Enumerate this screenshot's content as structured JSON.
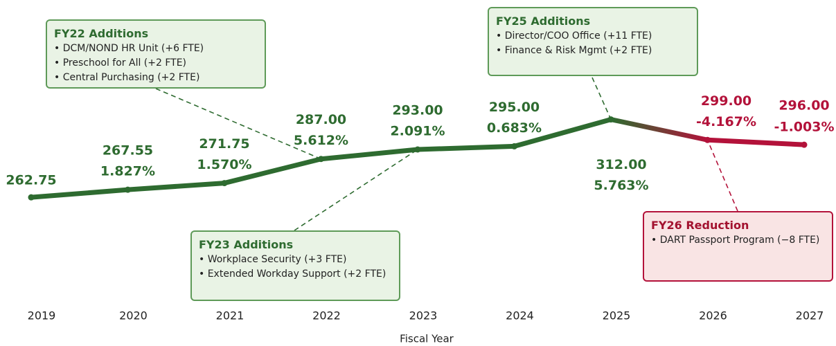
{
  "chart_data": {
    "type": "line",
    "x_label": "Fiscal Year",
    "categories": [
      "2019",
      "2020",
      "2021",
      "2022",
      "2023",
      "2024",
      "2025",
      "2026",
      "2027"
    ],
    "series": [
      {
        "color": "#2e6b30",
        "decline_color": "#b3123a",
        "values": [
          262.75,
          267.55,
          271.75,
          287,
          293,
          295,
          312,
          299,
          296
        ],
        "value_labels": [
          "262.75",
          "267.55",
          "271.75",
          "287.00",
          "293.00",
          "295.00",
          "312.00",
          "299.00",
          "296.00"
        ],
        "pct_change": [
          null,
          1.827,
          1.57,
          5.612,
          2.091,
          0.683,
          5.763,
          -4.167,
          -1.003
        ],
        "pct_labels": [
          null,
          "1.827%",
          "1.570%",
          "5.612%",
          "2.091%",
          "0.683%",
          "5.763%",
          "-4.167%",
          "-1.003%"
        ]
      }
    ],
    "ylim": [
      195,
      370
    ],
    "annotations": [
      {
        "title": "FY22 Additions",
        "items": [
          "• DCM/NOND HR Unit (+6 FTE)",
          "• Preschool for All (+2 FTE)",
          "• Central Purchasing (+2 FTE)"
        ]
      },
      {
        "title": "FY23 Additions",
        "items": [
          "• Workplace Security (+3 FTE)",
          "• Extended Workday Support (+2 FTE)"
        ]
      },
      {
        "title": "FY25 Additions",
        "items": [
          "• Director/COO Office (+11 FTE)",
          "• Finance & Risk Mgmt (+2 FTE)"
        ]
      },
      {
        "title": "FY26 Reduction",
        "items": [
          "• DART Passport Program (−8 FTE)"
        ]
      }
    ]
  }
}
